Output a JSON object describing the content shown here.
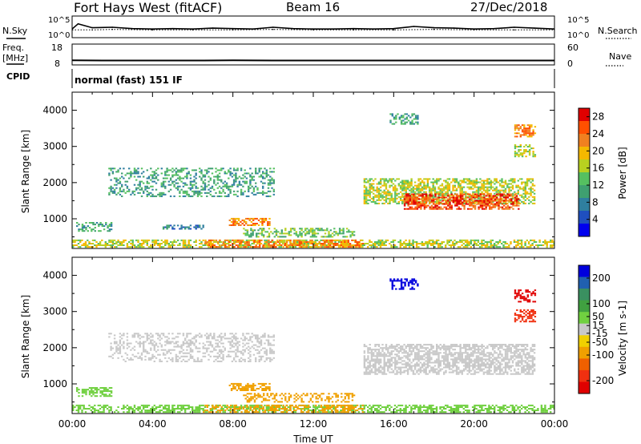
{
  "header": {
    "station": "Fort Hays West (fitACF)",
    "beam": "Beam 16",
    "date": "27/Dec/2018"
  },
  "left_labels": {
    "nsky": "N.Sky",
    "freq_line1": "Freq.",
    "freq_line2": "[MHz]",
    "cpid": "CPID"
  },
  "right_labels": {
    "nsearch": "N.Search",
    "nave": "Nave"
  },
  "mode_text": "normal (fast) 151 IF",
  "x_axis_label": "Time UT",
  "colors": {
    "axis": "#000000",
    "scatter_grey": "#c8c8c8",
    "power_scale": [
      "#0000ee",
      "#1f4fbf",
      "#2f7f9f",
      "#3fa070",
      "#55c060",
      "#b8d020",
      "#f4b800",
      "#f08020",
      "#ff5000",
      "#e00000"
    ],
    "velocity_scale": [
      "#0000dd",
      "#2060b0",
      "#3a9060",
      "#40a040",
      "#70d040",
      "#c8c8c8",
      "#f0d000",
      "#f0a000",
      "#f06000",
      "#f03010",
      "#e00000"
    ]
  },
  "chart_data": [
    {
      "type": "line",
      "panel": "noise",
      "series": [
        {
          "name": "N.Sky",
          "x": [
            0,
            0.3,
            1,
            2,
            3,
            4,
            5,
            6,
            7,
            8,
            9,
            10,
            11,
            12,
            13,
            14,
            15,
            16,
            17,
            18,
            19,
            20,
            21,
            22,
            23,
            24
          ],
          "y": [
            2.0,
            3.2,
            2.3,
            2.4,
            2.1,
            2.0,
            2.1,
            2.0,
            2.2,
            2.1,
            2.0,
            2.4,
            2.1,
            2.0,
            2.0,
            2.1,
            2.0,
            2.1,
            2.6,
            2.3,
            2.2,
            2.0,
            2.1,
            2.4,
            2.2,
            2.0
          ]
        },
        {
          "name": "N.Search",
          "x": [
            0,
            1,
            2,
            4,
            6,
            8,
            10,
            12,
            14,
            16,
            18,
            20,
            22,
            24
          ],
          "y": [
            1.8,
            1.8,
            1.9,
            1.8,
            1.8,
            1.8,
            1.9,
            1.8,
            1.8,
            1.8,
            1.9,
            1.8,
            1.8,
            1.8
          ]
        }
      ],
      "y_ticks": [
        "10^5",
        "10^0"
      ],
      "right_ticks": [
        "10^5",
        "10^0"
      ],
      "ylim": [
        0,
        5
      ]
    },
    {
      "type": "line",
      "panel": "frequency",
      "series": [
        {
          "name": "Freq.",
          "x": [
            0,
            2,
            4,
            6,
            8,
            10,
            12,
            14,
            16,
            18,
            20,
            22,
            24
          ],
          "y": [
            10.2,
            10.1,
            10.1,
            10.1,
            10.2,
            10.1,
            10.1,
            10.1,
            10.1,
            10.1,
            10.1,
            10.1,
            10.1
          ]
        },
        {
          "name": "Nave",
          "x": [
            0,
            24
          ],
          "y": [
            18,
            18
          ]
        }
      ],
      "y_ticks": [
        "18",
        "8"
      ],
      "right_ticks": [
        "60",
        "0"
      ],
      "ylim": [
        8,
        18
      ]
    },
    {
      "type": "heatmap",
      "panel": "power",
      "ylabel": "Slant Range [km]",
      "colorbar_label": "Power [dB]",
      "colorbar_ticks": [
        4,
        8,
        12,
        16,
        20,
        24,
        28
      ],
      "colorbar_range": [
        0,
        30
      ],
      "x_ticks": [
        "00:00",
        "04:00",
        "08:00",
        "12:00",
        "16:00",
        "20:00",
        "00:00"
      ],
      "xlim": [
        0,
        24
      ],
      "y_ticks": [
        1000,
        2000,
        3000,
        4000
      ],
      "ylim": [
        180,
        4500
      ],
      "regions": [
        {
          "t0": 0.0,
          "t1": 24.0,
          "r0": 200,
          "r1": 420,
          "level": 5,
          "density": 0.55
        },
        {
          "t0": 6.5,
          "t1": 14.5,
          "r0": 200,
          "r1": 400,
          "level": 7,
          "density": 0.5
        },
        {
          "t0": 0.2,
          "t1": 2.0,
          "r0": 640,
          "r1": 880,
          "level": 3,
          "density": 0.5
        },
        {
          "t0": 4.5,
          "t1": 6.5,
          "r0": 700,
          "r1": 800,
          "level": 2,
          "density": 0.5
        },
        {
          "t0": 7.8,
          "t1": 9.8,
          "r0": 800,
          "r1": 1000,
          "level": 7,
          "density": 0.6
        },
        {
          "t0": 8.5,
          "t1": 14.0,
          "r0": 480,
          "r1": 720,
          "level": 4,
          "density": 0.5
        },
        {
          "t0": 1.8,
          "t1": 10.0,
          "r0": 1600,
          "r1": 2400,
          "level": 3,
          "density": 0.35
        },
        {
          "t0": 14.5,
          "t1": 23.0,
          "r0": 1400,
          "r1": 2100,
          "level": 5,
          "density": 0.6
        },
        {
          "t0": 16.5,
          "t1": 22.2,
          "r0": 1250,
          "r1": 1700,
          "level": 8,
          "density": 0.65
        },
        {
          "t0": 15.8,
          "t1": 17.2,
          "r0": 3600,
          "r1": 3900,
          "level": 3,
          "density": 0.5
        },
        {
          "t0": 22.0,
          "t1": 23.0,
          "r0": 3250,
          "r1": 3600,
          "level": 7,
          "density": 0.55
        },
        {
          "t0": 22.0,
          "t1": 23.0,
          "r0": 2700,
          "r1": 3050,
          "level": 5,
          "density": 0.45
        }
      ]
    },
    {
      "type": "heatmap",
      "panel": "velocity",
      "ylabel": "Slant Range [km]",
      "xlabel": "Time UT",
      "colorbar_label": "Velocity [m s-1]",
      "colorbar_ticks": [
        200,
        100,
        50,
        15,
        -15,
        -50,
        -100,
        -200
      ],
      "colorbar_range": [
        -250,
        250
      ],
      "x_ticks": [
        "00:00",
        "04:00",
        "08:00",
        "12:00",
        "16:00",
        "20:00",
        "00:00"
      ],
      "xlim": [
        0,
        24
      ],
      "y_ticks": [
        1000,
        2000,
        3000,
        4000
      ],
      "ylim": [
        180,
        4500
      ],
      "regions": [
        {
          "t0": 0.0,
          "t1": 24.0,
          "r0": 200,
          "r1": 420,
          "level": 4,
          "density": 0.55
        },
        {
          "t0": 6.5,
          "t1": 14.5,
          "r0": 200,
          "r1": 420,
          "level": 7,
          "density": 0.5
        },
        {
          "t0": 0.2,
          "t1": 2.0,
          "r0": 640,
          "r1": 880,
          "level": 4,
          "density": 0.5
        },
        {
          "t0": 7.8,
          "t1": 9.8,
          "r0": 800,
          "r1": 1000,
          "level": 7,
          "density": 0.6
        },
        {
          "t0": 8.5,
          "t1": 14.0,
          "r0": 480,
          "r1": 720,
          "level": 7,
          "density": 0.4
        },
        {
          "t0": 1.8,
          "t1": 10.0,
          "r0": 1600,
          "r1": 2400,
          "level": 5,
          "density": 0.35
        },
        {
          "t0": 14.5,
          "t1": 23.0,
          "r0": 1250,
          "r1": 2100,
          "level": 5,
          "density": 0.65
        },
        {
          "t0": 15.8,
          "t1": 17.2,
          "r0": 3600,
          "r1": 3900,
          "level": 0,
          "density": 0.5
        },
        {
          "t0": 22.0,
          "t1": 23.0,
          "r0": 3250,
          "r1": 3600,
          "level": 10,
          "density": 0.55
        },
        {
          "t0": 22.0,
          "t1": 23.0,
          "r0": 2700,
          "r1": 3050,
          "level": 9,
          "density": 0.45
        }
      ]
    }
  ]
}
